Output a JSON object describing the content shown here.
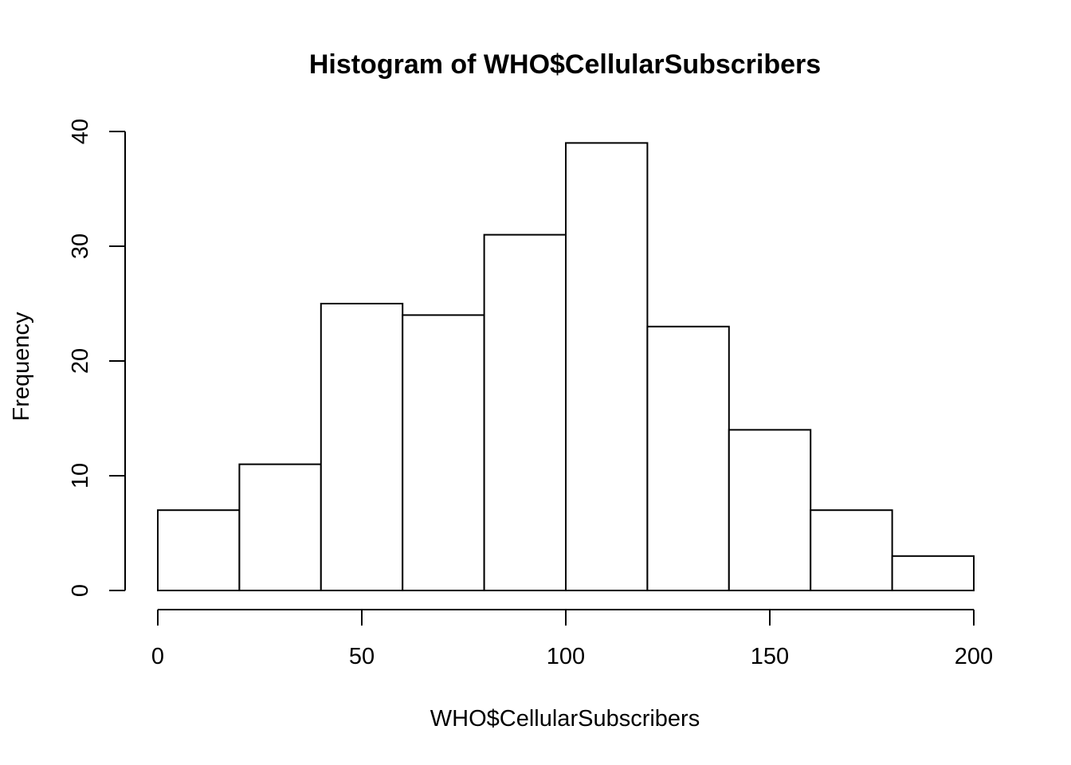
{
  "chart_data": {
    "type": "bar",
    "title": "Histogram of WHO$CellularSubscribers",
    "xlabel": "WHO$CellularSubscribers",
    "ylabel": "Frequency",
    "bins": [
      {
        "from": 0,
        "to": 20,
        "count": 7
      },
      {
        "from": 20,
        "to": 40,
        "count": 11
      },
      {
        "from": 40,
        "to": 60,
        "count": 25
      },
      {
        "from": 60,
        "to": 80,
        "count": 24
      },
      {
        "from": 80,
        "to": 100,
        "count": 31
      },
      {
        "from": 100,
        "to": 120,
        "count": 39
      },
      {
        "from": 120,
        "to": 140,
        "count": 23
      },
      {
        "from": 140,
        "to": 160,
        "count": 14
      },
      {
        "from": 160,
        "to": 180,
        "count": 7
      },
      {
        "from": 180,
        "to": 200,
        "count": 3
      }
    ],
    "x_ticks": [
      0,
      50,
      100,
      150,
      200
    ],
    "y_ticks": [
      0,
      10,
      20,
      30,
      40
    ],
    "xlim": [
      0,
      200
    ],
    "ylim": [
      0,
      40
    ],
    "grid": false
  }
}
